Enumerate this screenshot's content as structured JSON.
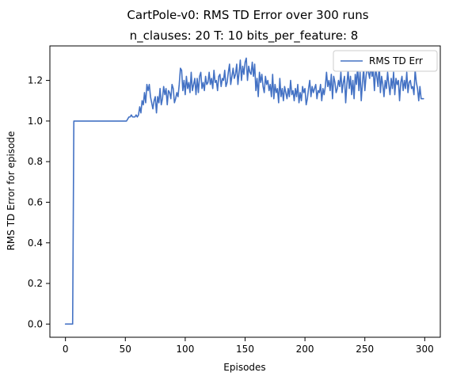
{
  "chart_data": {
    "type": "line",
    "title": "CartPole-v0: RMS TD Error over 300 runs",
    "subtitle": "n_clauses: 20 T: 10 bits_per_feature: 8",
    "xlabel": "Episodes",
    "ylabel": "RMS TD Error for episode",
    "xlim": [
      -13,
      313
    ],
    "ylim": [
      -0.065,
      1.37
    ],
    "x_ticks": [
      0,
      50,
      100,
      150,
      200,
      250,
      300
    ],
    "y_ticks": [
      0.0,
      0.2,
      0.4,
      0.6,
      0.8,
      1.0,
      1.2
    ],
    "x_tick_labels": [
      "0",
      "50",
      "100",
      "150",
      "200",
      "250",
      "300"
    ],
    "y_tick_labels": [
      "0.0",
      "0.2",
      "0.4",
      "0.6",
      "0.8",
      "1.0",
      "1.2"
    ],
    "grid": false,
    "legend_position": "top-right",
    "series": [
      {
        "name": "RMS TD Err",
        "color": "#4472c4",
        "x_start": 0,
        "x_step": 1,
        "values": [
          0.0,
          0.0,
          0.0,
          0.0,
          0.0,
          0.0,
          0.0,
          1.0,
          1.0,
          1.0,
          1.0,
          1.0,
          1.0,
          1.0,
          1.0,
          1.0,
          1.0,
          1.0,
          1.0,
          1.0,
          1.0,
          1.0,
          1.0,
          1.0,
          1.0,
          1.0,
          1.0,
          1.0,
          1.0,
          1.0,
          1.0,
          1.0,
          1.0,
          1.0,
          1.0,
          1.0,
          1.0,
          1.0,
          1.0,
          1.0,
          1.0,
          1.0,
          1.0,
          1.0,
          1.0,
          1.0,
          1.0,
          1.0,
          1.0,
          1.0,
          1.0,
          1.0,
          1.01,
          1.02,
          1.02,
          1.03,
          1.02,
          1.02,
          1.02,
          1.03,
          1.02,
          1.03,
          1.07,
          1.04,
          1.1,
          1.08,
          1.14,
          1.09,
          1.18,
          1.15,
          1.18,
          1.12,
          1.09,
          1.06,
          1.1,
          1.12,
          1.04,
          1.12,
          1.09,
          1.16,
          1.08,
          1.11,
          1.17,
          1.13,
          1.16,
          1.08,
          1.15,
          1.14,
          1.11,
          1.18,
          1.16,
          1.09,
          1.11,
          1.14,
          1.12,
          1.18,
          1.26,
          1.25,
          1.15,
          1.2,
          1.13,
          1.22,
          1.16,
          1.19,
          1.14,
          1.24,
          1.15,
          1.18,
          1.21,
          1.13,
          1.21,
          1.14,
          1.22,
          1.24,
          1.16,
          1.19,
          1.15,
          1.22,
          1.18,
          1.19,
          1.24,
          1.18,
          1.21,
          1.16,
          1.25,
          1.19,
          1.2,
          1.15,
          1.22,
          1.23,
          1.17,
          1.21,
          1.2,
          1.25,
          1.17,
          1.19,
          1.24,
          1.28,
          1.18,
          1.22,
          1.26,
          1.21,
          1.23,
          1.28,
          1.18,
          1.24,
          1.3,
          1.2,
          1.27,
          1.23,
          1.29,
          1.31,
          1.2,
          1.27,
          1.24,
          1.23,
          1.29,
          1.22,
          1.28,
          1.15,
          1.21,
          1.12,
          1.24,
          1.19,
          1.23,
          1.17,
          1.14,
          1.22,
          1.18,
          1.2,
          1.15,
          1.18,
          1.12,
          1.23,
          1.11,
          1.18,
          1.14,
          1.16,
          1.09,
          1.21,
          1.12,
          1.16,
          1.1,
          1.17,
          1.14,
          1.11,
          1.16,
          1.12,
          1.2,
          1.13,
          1.15,
          1.1,
          1.16,
          1.12,
          1.18,
          1.09,
          1.14,
          1.1,
          1.17,
          1.14,
          1.16,
          1.08,
          1.11,
          1.16,
          1.2,
          1.12,
          1.17,
          1.14,
          1.16,
          1.18,
          1.11,
          1.15,
          1.14,
          1.18,
          1.1,
          1.16,
          1.13,
          1.17,
          1.24,
          1.17,
          1.2,
          1.15,
          1.23,
          1.11,
          1.22,
          1.19,
          1.14,
          1.16,
          1.2,
          1.17,
          1.24,
          1.14,
          1.19,
          1.22,
          1.09,
          1.18,
          1.25,
          1.16,
          1.22,
          1.13,
          1.2,
          1.11,
          1.23,
          1.18,
          1.27,
          1.15,
          1.24,
          1.1,
          1.19,
          1.26,
          1.15,
          1.22,
          1.27,
          1.24,
          1.21,
          1.28,
          1.22,
          1.25,
          1.15,
          1.26,
          1.22,
          1.17,
          1.28,
          1.14,
          1.22,
          1.18,
          1.12,
          1.2,
          1.16,
          1.24,
          1.18,
          1.13,
          1.21,
          1.16,
          1.24,
          1.13,
          1.21,
          1.18,
          1.2,
          1.1,
          1.19,
          1.22,
          1.15,
          1.2,
          1.16,
          1.24,
          1.14,
          1.19,
          1.2,
          1.16,
          1.17,
          1.13,
          1.25,
          1.19,
          1.16,
          1.1,
          1.17,
          1.11,
          1.11,
          1.11
        ]
      }
    ]
  }
}
